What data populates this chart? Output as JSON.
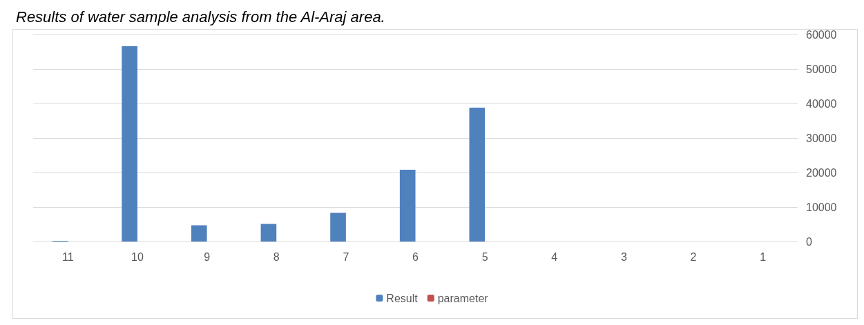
{
  "chart_data": {
    "type": "bar",
    "title": "Results of water sample analysis from the Al-Araj area.",
    "categories": [
      "11",
      "10",
      "9",
      "8",
      "7",
      "6",
      "5",
      "4",
      "3",
      "2",
      "1"
    ],
    "series": [
      {
        "name": "Result",
        "color": "#4f81bd",
        "values": [
          200,
          56600,
          4700,
          5100,
          8300,
          20800,
          38800,
          0,
          0,
          0,
          0
        ]
      },
      {
        "name": "parameter",
        "color": "#c0504d",
        "values": [
          0,
          0,
          0,
          0,
          0,
          0,
          0,
          0,
          0,
          0,
          0
        ]
      }
    ],
    "ylim": [
      0,
      60000
    ],
    "yticks": [
      0,
      10000,
      20000,
      30000,
      40000,
      50000,
      60000
    ],
    "grid": "y",
    "legend": "bottom"
  }
}
